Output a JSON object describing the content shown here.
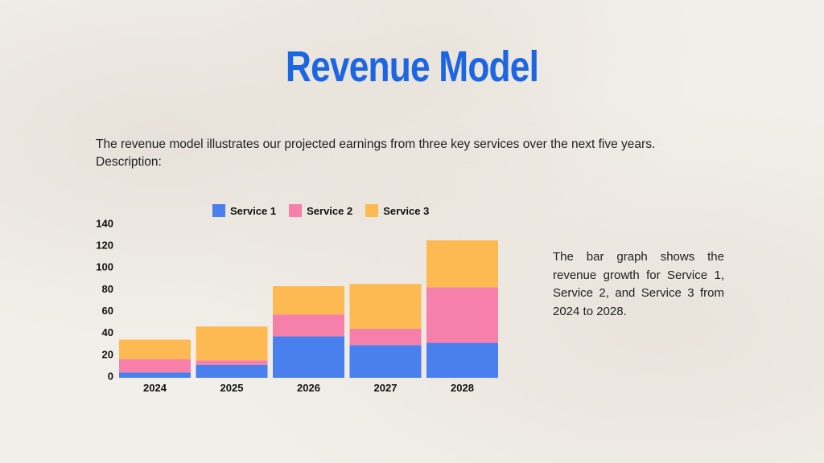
{
  "slide": {
    "title": "Revenue Model",
    "intro_line1": "The revenue model illustrates our projected earnings from three key services over the next five years.",
    "intro_line2": "Description:",
    "side_text": "The bar graph shows the revenue growth for Service 1, Service 2, and Service 3 from 2024 to 2028."
  },
  "colors": {
    "title": "#1d66e3",
    "service1": "#4a7fee",
    "service2": "#f780ab",
    "service3": "#fdba52"
  },
  "chart_data": {
    "type": "bar",
    "stacked": true,
    "categories": [
      "2024",
      "2025",
      "2026",
      "2027",
      "2028"
    ],
    "series": [
      {
        "name": "Service 1",
        "values": [
          5,
          12,
          38,
          30,
          32
        ]
      },
      {
        "name": "Service 2",
        "values": [
          12,
          4,
          20,
          15,
          51
        ]
      },
      {
        "name": "Service 3",
        "values": [
          18,
          31,
          26,
          41,
          43
        ]
      }
    ],
    "ylim": [
      0,
      140
    ],
    "yticks": [
      0,
      20,
      40,
      60,
      80,
      100,
      120,
      140
    ],
    "legend_position": "top",
    "grid": false,
    "title": "",
    "xlabel": "",
    "ylabel": ""
  }
}
